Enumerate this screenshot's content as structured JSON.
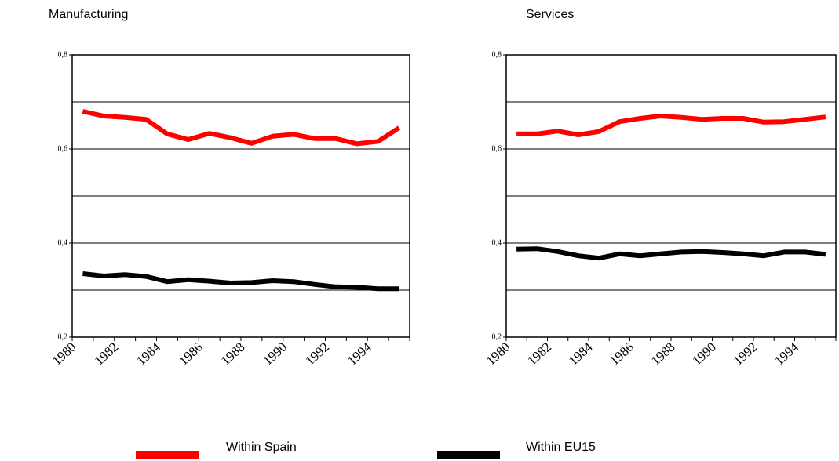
{
  "chart_data": [
    {
      "type": "line",
      "subtitle": "Manufacturing",
      "categories": [
        "1980",
        null,
        "1982",
        null,
        "1984",
        null,
        "1986",
        null,
        "1988",
        null,
        "1990",
        null,
        "1992",
        null,
        "1994",
        null
      ],
      "series": [
        {
          "name": "Within Spain",
          "color": "#ff0000",
          "values": [
            0.68,
            0.67,
            0.667,
            0.663,
            0.632,
            0.62,
            0.633,
            0.624,
            0.612,
            0.627,
            0.631,
            0.622,
            0.622,
            0.611,
            0.616,
            0.645
          ]
        },
        {
          "name": "Within EU15",
          "color": "#000000",
          "values": [
            0.335,
            0.33,
            0.333,
            0.329,
            0.318,
            0.322,
            0.319,
            0.315,
            0.316,
            0.32,
            0.318,
            0.312,
            0.307,
            0.306,
            0.303,
            0.303
          ]
        }
      ],
      "ylim": [
        0.2,
        0.8
      ],
      "yticks": [
        {
          "value": 0.2,
          "label": "0,2"
        },
        {
          "value": 0.4,
          "label": "0,4"
        },
        {
          "value": 0.6,
          "label": "0,6"
        },
        {
          "value": 0.8,
          "label": "0,8"
        }
      ],
      "ygrid": [
        0.3,
        0.4,
        0.5,
        0.6,
        0.7
      ]
    },
    {
      "type": "line",
      "subtitle": "Services",
      "categories": [
        "1980",
        null,
        "1982",
        null,
        "1984",
        null,
        "1986",
        null,
        "1988",
        null,
        "1990",
        null,
        "1992",
        null,
        "1994",
        null
      ],
      "series": [
        {
          "name": "Within Spain",
          "color": "#ff0000",
          "values": [
            0.632,
            0.632,
            0.638,
            0.63,
            0.637,
            0.658,
            0.665,
            0.67,
            0.667,
            0.663,
            0.665,
            0.665,
            0.657,
            0.658,
            0.663,
            0.668
          ]
        },
        {
          "name": "Within EU15",
          "color": "#000000",
          "values": [
            0.387,
            0.388,
            0.382,
            0.373,
            0.368,
            0.377,
            0.373,
            0.377,
            0.381,
            0.382,
            0.38,
            0.377,
            0.373,
            0.381,
            0.381,
            0.376
          ]
        }
      ],
      "ylim": [
        0.2,
        0.8
      ],
      "yticks": [
        {
          "value": 0.2,
          "label": "0,2"
        },
        {
          "value": 0.4,
          "label": "0,4"
        },
        {
          "value": 0.6,
          "label": "0,6"
        },
        {
          "value": 0.8,
          "label": "0,8"
        }
      ],
      "ygrid": [
        0.3,
        0.4,
        0.5,
        0.6,
        0.7
      ]
    }
  ]
}
